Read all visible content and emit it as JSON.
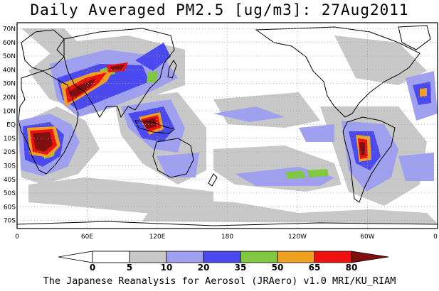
{
  "title": "Daily Averaged PM2.5 [ug/m3]: 27Aug2011",
  "credit": "The Japanese Reanalysis for Aerosol (JRAero) v1.0 MRI/KU_RIAM",
  "lat_labels": [
    "70N",
    "60N",
    "50N",
    "40N",
    "30N",
    "20N",
    "10N",
    "EQ",
    "10S",
    "20S",
    "30S",
    "40S",
    "50S",
    "60S",
    "70S"
  ],
  "lon_labels": [
    "0",
    "60E",
    "120E",
    "180",
    "120W",
    "60W",
    "0"
  ],
  "colorbar": {
    "labels": [
      "0",
      "5",
      "10",
      "20",
      "35",
      "50",
      "65",
      "80"
    ],
    "colors": [
      "#ffffff",
      "#c8c8c8",
      "#a0a0f0",
      "#4a4af0",
      "#80c840",
      "#f0a020",
      "#f01010",
      "#801010"
    ]
  },
  "colors": {
    "land": "#ffffff",
    "coast": "#000000",
    "grid": "#a0a0a0"
  }
}
